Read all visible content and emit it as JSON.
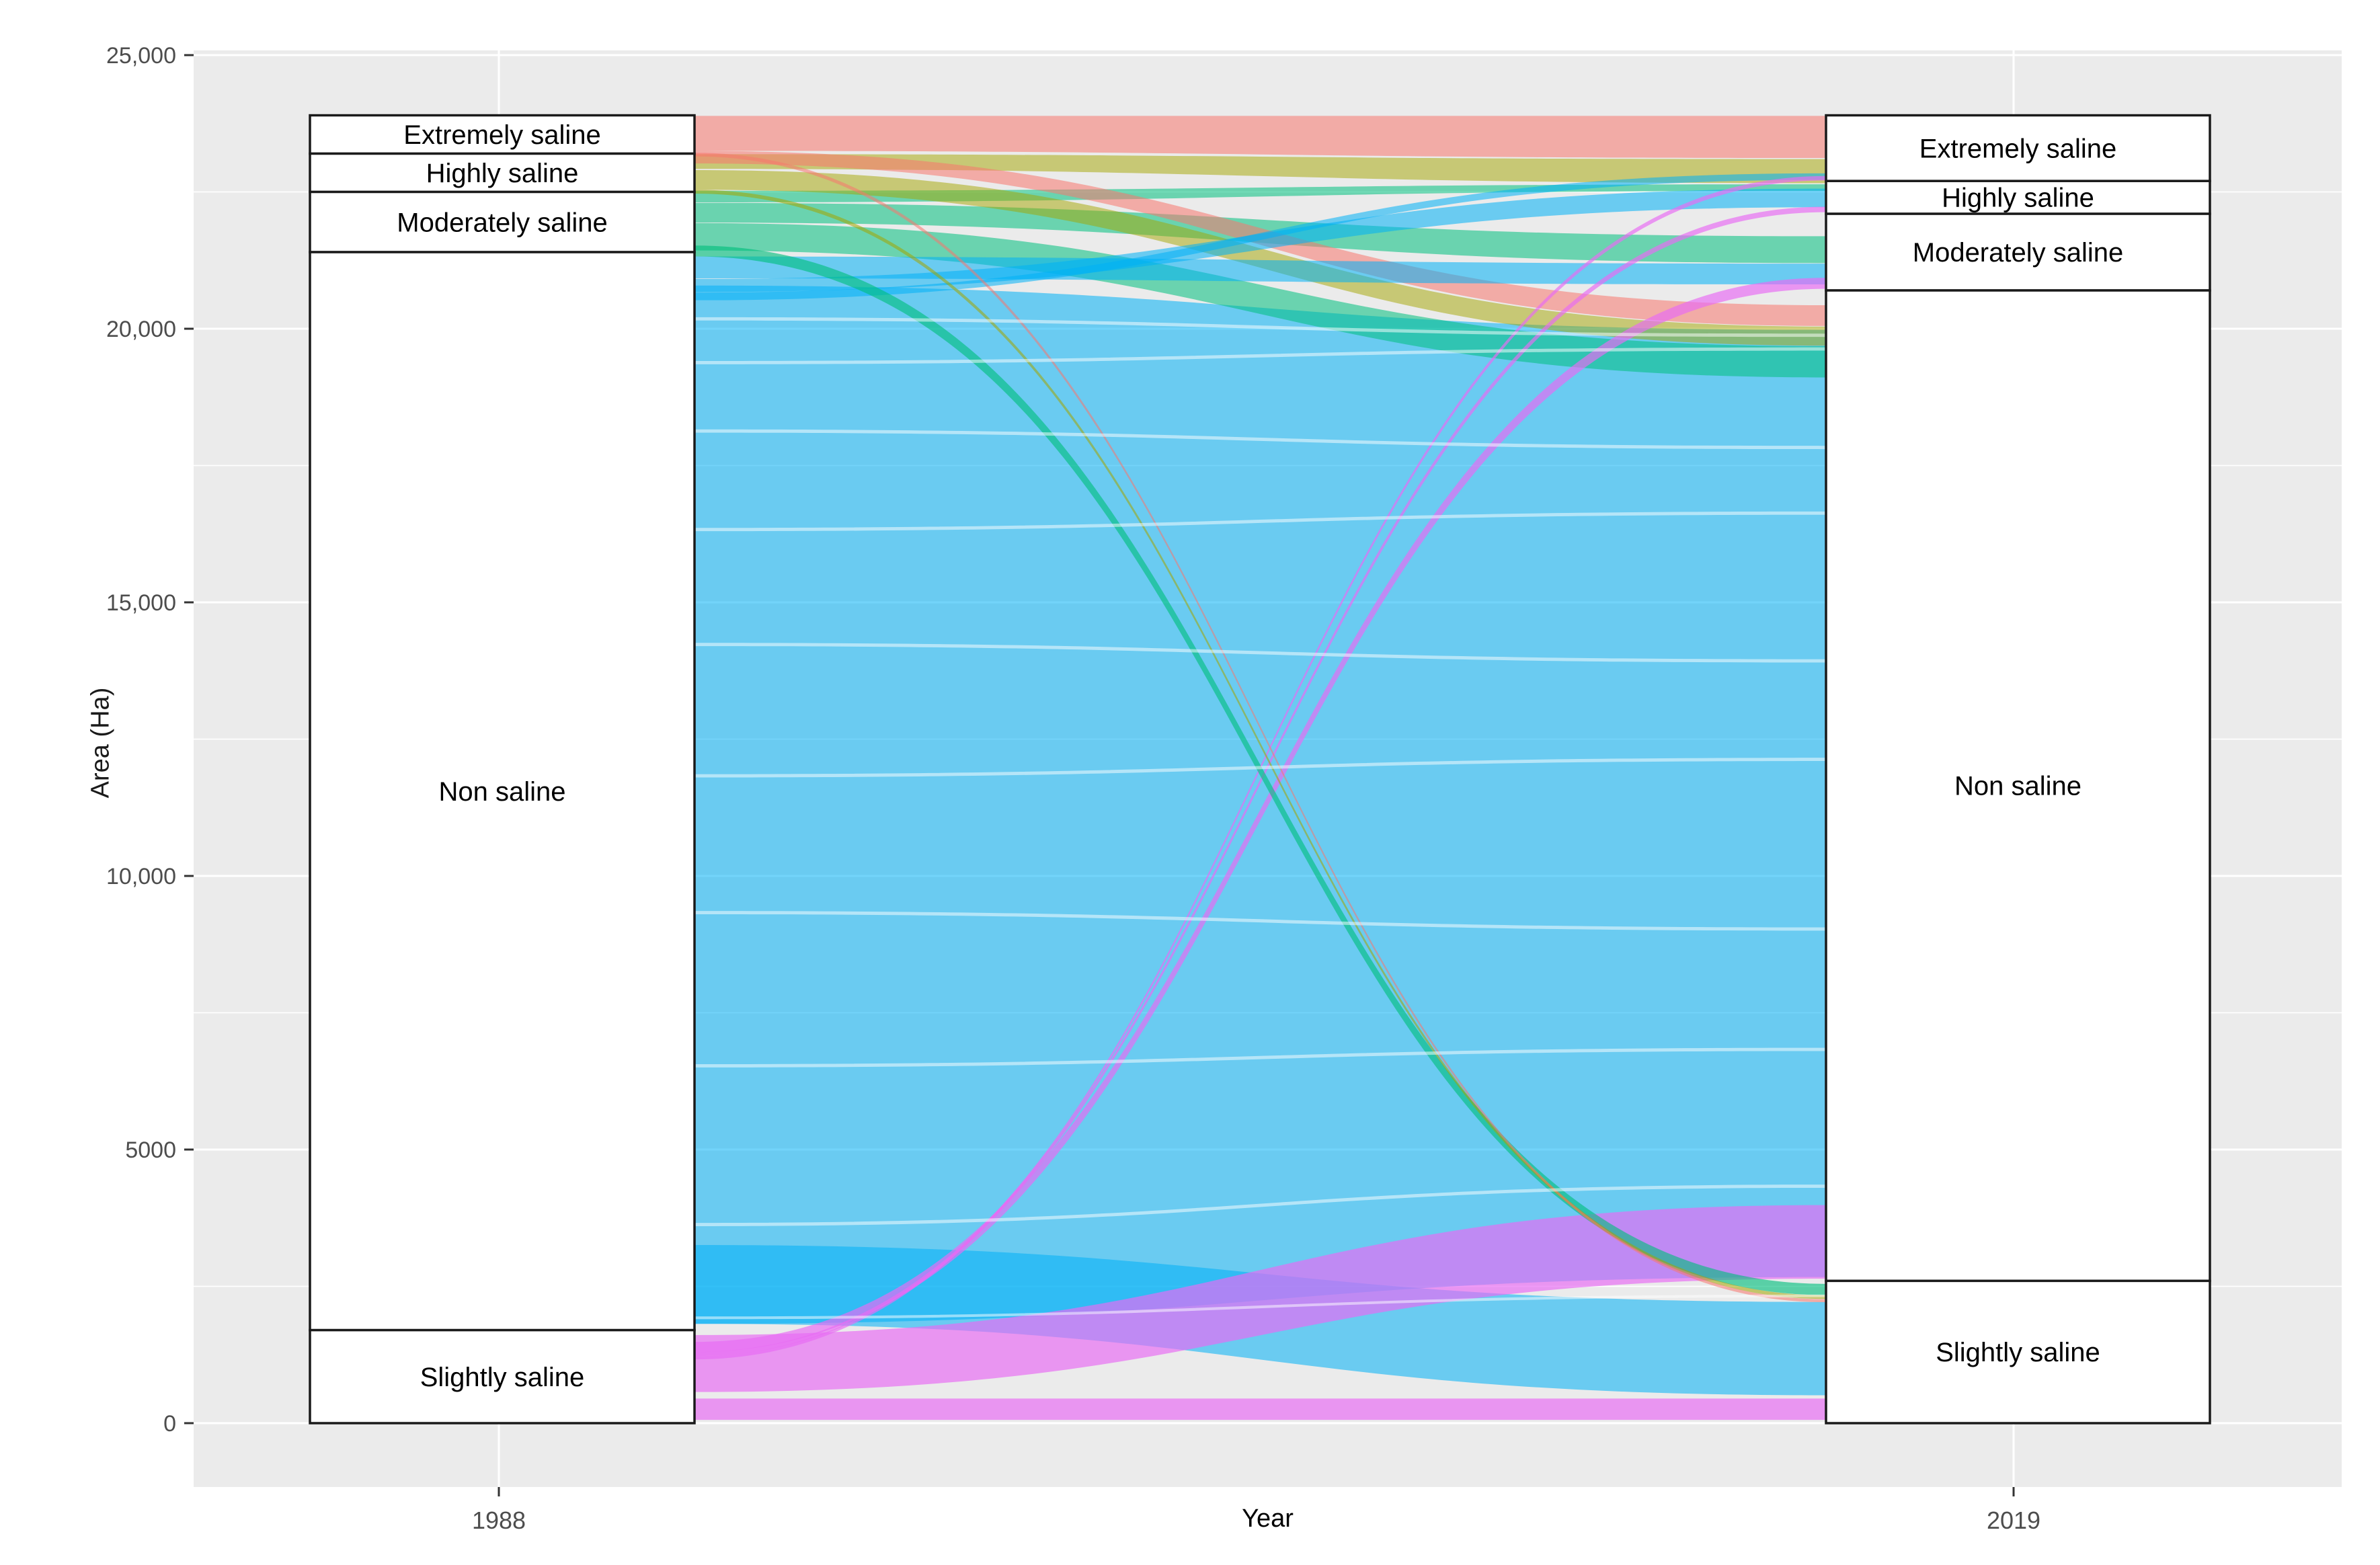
{
  "palette": {
    "red": "#F8766D",
    "olive": "#A3A500",
    "green": "#00BF7D",
    "blue": "#00B0F6",
    "magenta": "#E76BF3",
    "panel_bg": "#EBEBEB",
    "grid": "#FFFFFF",
    "box_fill": "#FFFFFF",
    "box_stroke": "#1A1A1A",
    "tick_text": "#4D4D4D",
    "tick_mark": "#333333",
    "label_text": "#000000"
  },
  "chart_data": {
    "type": "area",
    "subtype": "alluvial-sankey",
    "title": "",
    "xlabel": "Year",
    "ylabel": "Area (Ha)",
    "x_categories": [
      "1988",
      "2019"
    ],
    "ylim": [
      0,
      25000
    ],
    "grid": "on",
    "legend": "none",
    "y_ticks": [
      {
        "label": "25,000",
        "value": 25000
      },
      {
        "label": "20,000",
        "value": 20000
      },
      {
        "label": "15,000",
        "value": 15000
      },
      {
        "label": "10,000",
        "value": 10000
      },
      {
        "label": "5000",
        "value": 5000
      },
      {
        "label": "0",
        "value": 0
      }
    ],
    "y_minor_ticks": [
      22500,
      17500,
      12500,
      7500,
      2500
    ],
    "strata": {
      "1988": [
        {
          "label": "Extremely saline",
          "from": 23200,
          "to": 23900,
          "area_ha": 700
        },
        {
          "label": "Highly saline",
          "from": 22500,
          "to": 23200,
          "area_ha": 700
        },
        {
          "label": "Moderately saline",
          "from": 21400,
          "to": 22500,
          "area_ha": 1100
        },
        {
          "label": "Non saline",
          "from": 1700,
          "to": 21400,
          "area_ha": 19700
        },
        {
          "label": "Slightly saline",
          "from": 0,
          "to": 1700,
          "area_ha": 1700
        }
      ],
      "2019": [
        {
          "label": "Extremely saline",
          "from": 22700,
          "to": 23900,
          "area_ha": 1200
        },
        {
          "label": "Highly saline",
          "from": 22100,
          "to": 22700,
          "area_ha": 600
        },
        {
          "label": "Moderately saline",
          "from": 20700,
          "to": 22100,
          "area_ha": 1400
        },
        {
          "label": "Non saline",
          "from": 2600,
          "to": 20700,
          "area_ha": 18100
        },
        {
          "label": "Slightly saline",
          "from": 0,
          "to": 2600,
          "area_ha": 2600
        }
      ]
    },
    "flows": [
      {
        "from": "Non saline",
        "to": "Non saline",
        "color": "blue",
        "opacity": 0.55,
        "left": [
          1815,
          20790
        ],
        "right": [
          2670,
          19980
        ],
        "value_ha": 18900
      },
      {
        "from": "Non saline",
        "to": "Slightly saline",
        "color": "blue",
        "opacity": 0.55,
        "left": [
          1815,
          3255
        ],
        "right": [
          510,
          2215
        ],
        "value_ha": 1500
      },
      {
        "from": "Moderately saline",
        "to": "Non saline",
        "color": "green",
        "opacity": 0.55,
        "left": [
          21430,
          21930
        ],
        "right": [
          19110,
          19680
        ],
        "value_ha": 520
      },
      {
        "from": "Moderately saline",
        "to": "Moderately saline",
        "color": "green",
        "opacity": 0.55,
        "left": [
          21940,
          22300
        ],
        "right": [
          21200,
          21690
        ],
        "value_ha": 400
      },
      {
        "from": "Moderately saline",
        "to": "Extremely saline",
        "color": "green",
        "opacity": 0.55,
        "left": [
          22310,
          22520
        ],
        "right": [
          22520,
          22640
        ],
        "value_ha": 170
      },
      {
        "from": "Highly saline",
        "to": "Non saline",
        "color": "olive",
        "opacity": 0.5,
        "left": [
          22540,
          22900
        ],
        "right": [
          19690,
          20040
        ],
        "value_ha": 350
      },
      {
        "from": "Highly saline",
        "to": "Extremely saline",
        "color": "olive",
        "opacity": 0.5,
        "left": [
          22920,
          23190
        ],
        "right": [
          22660,
          23100
        ],
        "value_ha": 300
      },
      {
        "from": "Extremely saline",
        "to": "Non saline",
        "color": "red",
        "opacity": 0.55,
        "left": [
          23020,
          23250
        ],
        "right": [
          20050,
          20430
        ],
        "value_ha": 300
      },
      {
        "from": "Extremely saline",
        "to": "Extremely saline",
        "color": "red",
        "opacity": 0.55,
        "left": [
          23250,
          23890
        ],
        "right": [
          23120,
          23890
        ],
        "value_ha": 700
      },
      {
        "from": "Non saline",
        "to": "Moderately saline",
        "color": "blue",
        "opacity": 0.55,
        "left": [
          20920,
          21320
        ],
        "right": [
          20810,
          21190
        ],
        "value_ha": 400
      },
      {
        "from": "Non saline",
        "to": "Highly saline",
        "color": "blue",
        "opacity": 0.55,
        "left": [
          20670,
          20910
        ],
        "right": [
          22220,
          22560
        ],
        "value_ha": 280
      },
      {
        "from": "Non saline",
        "to": "Extremely saline",
        "color": "blue",
        "opacity": 0.55,
        "left": [
          20520,
          20660
        ],
        "right": [
          22720,
          22840
        ],
        "value_ha": 130
      },
      {
        "from": "Slightly saline",
        "to": "Non saline",
        "color": "magenta",
        "opacity": 0.68,
        "left": [
          570,
          1610
        ],
        "right": [
          2640,
          3985
        ],
        "value_ha": 1100
      },
      {
        "from": "Slightly saline",
        "to": "Slightly saline",
        "color": "magenta",
        "opacity": 0.68,
        "left": [
          60,
          450
        ],
        "right": [
          60,
          450
        ],
        "value_ha": 400
      },
      {
        "from": "Slightly saline",
        "to": "Moderately saline",
        "color": "magenta",
        "opacity": 0.68,
        "left": [
          1300,
          1485
        ],
        "right": [
          20730,
          20930
        ],
        "value_ha": 190
      },
      {
        "from": "Slightly saline",
        "to": "Highly saline",
        "color": "magenta",
        "opacity": 0.68,
        "left": [
          1225,
          1300
        ],
        "right": [
          22130,
          22230
        ],
        "value_ha": 90
      },
      {
        "from": "Slightly saline",
        "to": "Extremely saline",
        "color": "magenta",
        "opacity": 0.68,
        "left": [
          1165,
          1225
        ],
        "right": [
          22710,
          22790
        ],
        "value_ha": 70
      },
      {
        "from": "Moderately saline",
        "to": "Slightly saline",
        "color": "green",
        "opacity": 0.62,
        "left": [
          21320,
          21520
        ],
        "right": [
          2340,
          2545
        ],
        "value_ha": 200
      },
      {
        "from": "Highly saline",
        "to": "Slightly saline",
        "color": "olive",
        "opacity": 0.55,
        "left": [
          22470,
          22540
        ],
        "right": [
          2270,
          2335
        ],
        "value_ha": 70
      },
      {
        "from": "Extremely saline",
        "to": "Slightly saline",
        "color": "red",
        "opacity": 0.55,
        "left": [
          23150,
          23215
        ],
        "right": [
          2210,
          2265
        ],
        "value_ha": 60
      }
    ],
    "lode_gap_streaks": [
      {
        "left": [
          20150,
          20210
        ],
        "right": [
          19850,
          19910
        ]
      },
      {
        "left": [
          19350,
          19410
        ],
        "right": [
          19600,
          19660
        ]
      },
      {
        "left": [
          18100,
          18160
        ],
        "right": [
          17800,
          17860
        ]
      },
      {
        "left": [
          16300,
          16360
        ],
        "right": [
          16600,
          16660
        ]
      },
      {
        "left": [
          14200,
          14260
        ],
        "right": [
          13900,
          13960
        ]
      },
      {
        "left": [
          11800,
          11860
        ],
        "right": [
          12100,
          12160
        ]
      },
      {
        "left": [
          9300,
          9360
        ],
        "right": [
          9000,
          9060
        ]
      },
      {
        "left": [
          6500,
          6560
        ],
        "right": [
          6800,
          6860
        ]
      },
      {
        "left": [
          3600,
          3660
        ],
        "right": [
          4300,
          4360
        ]
      },
      {
        "left": [
          1900,
          1950
        ],
        "right": [
          2300,
          2350
        ]
      }
    ],
    "x_tick_labels": [
      "1988",
      "2019"
    ]
  }
}
